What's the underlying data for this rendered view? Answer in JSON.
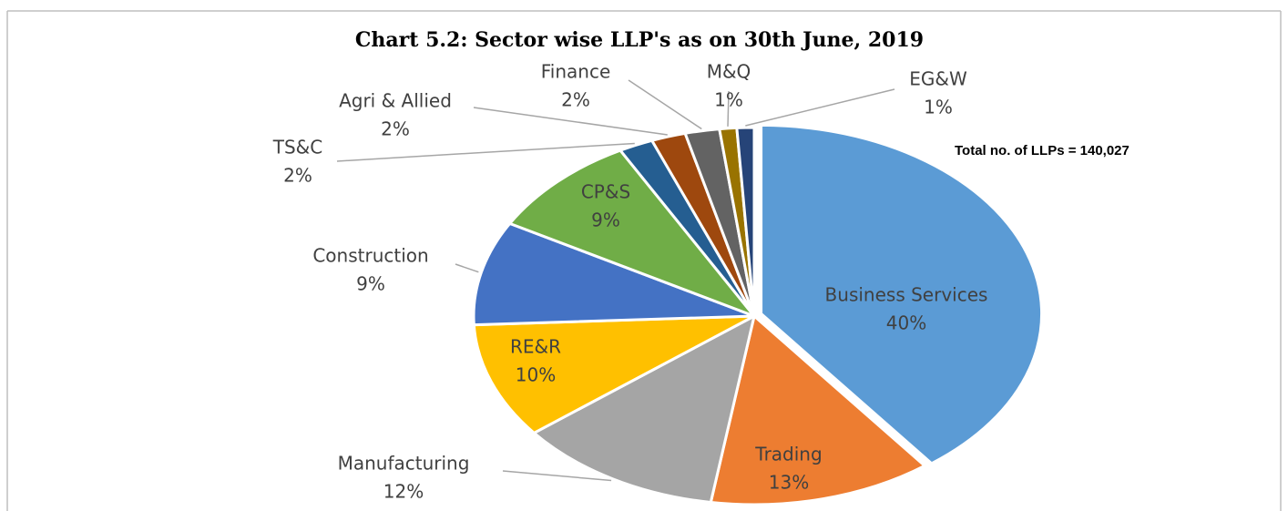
{
  "chart_data": {
    "type": "pie",
    "title": "Chart 5.2: Sector wise LLP's as on 30th June, 2019",
    "annotation": "Total no. of LLPs = 140,027",
    "categories": [
      "Business Services",
      "Trading",
      "Manufacturing",
      "RE&R",
      "Construction",
      "CP&S",
      "TS&C",
      "Agri & Allied",
      "Finance",
      "M&Q",
      "EG&W"
    ],
    "values": [
      40,
      13,
      12,
      10,
      9,
      9,
      2,
      2,
      2,
      1,
      1
    ],
    "value_labels": [
      "40%",
      "13%",
      "12%",
      "10%",
      "9%",
      "9%",
      "2%",
      "2%",
      "2%",
      "1%",
      "1%"
    ],
    "colors": [
      "#5b9bd5",
      "#ed7d31",
      "#a5a5a5",
      "#ffc000",
      "#4472c4",
      "#70ad47",
      "#255e91",
      "#9e480e",
      "#636363",
      "#997300",
      "#264478"
    ]
  }
}
